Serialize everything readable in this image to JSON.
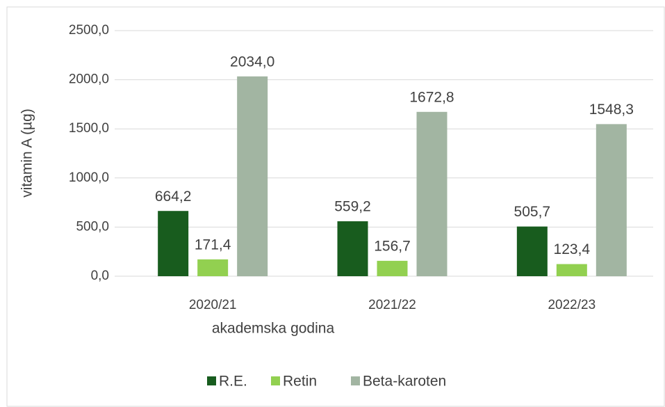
{
  "chart_data": {
    "type": "bar",
    "xlabel": "akademska godina",
    "ylabel": "vitamin A (µg)",
    "categories": [
      "2020/21",
      "2021/22",
      "2022/23"
    ],
    "series": [
      {
        "name": "R.E.",
        "color": "#185c1e",
        "values": [
          664.2,
          559.2,
          505.7
        ],
        "value_labels": [
          "664,2",
          "559,2",
          "505,7"
        ]
      },
      {
        "name": "Retin",
        "color": "#92d050",
        "values": [
          171.4,
          156.7,
          123.4
        ],
        "value_labels": [
          "171,4",
          "156,7",
          "123,4"
        ]
      },
      {
        "name": "Beta-karoten",
        "color": "#a2b5a2",
        "values": [
          2034.0,
          1672.8,
          1548.3
        ],
        "value_labels": [
          "2034,0",
          "1672,8",
          "1548,3"
        ]
      }
    ],
    "ylim": [
      0,
      2500
    ],
    "yticks": [
      {
        "value": 0,
        "label": "0,0"
      },
      {
        "value": 500,
        "label": "500,0"
      },
      {
        "value": 1000,
        "label": "1000,0"
      },
      {
        "value": 1500,
        "label": "1500,0"
      },
      {
        "value": 2000,
        "label": "2000,0"
      },
      {
        "value": 2500,
        "label": "2500,0"
      }
    ],
    "grid": true,
    "legend": "bottom"
  }
}
